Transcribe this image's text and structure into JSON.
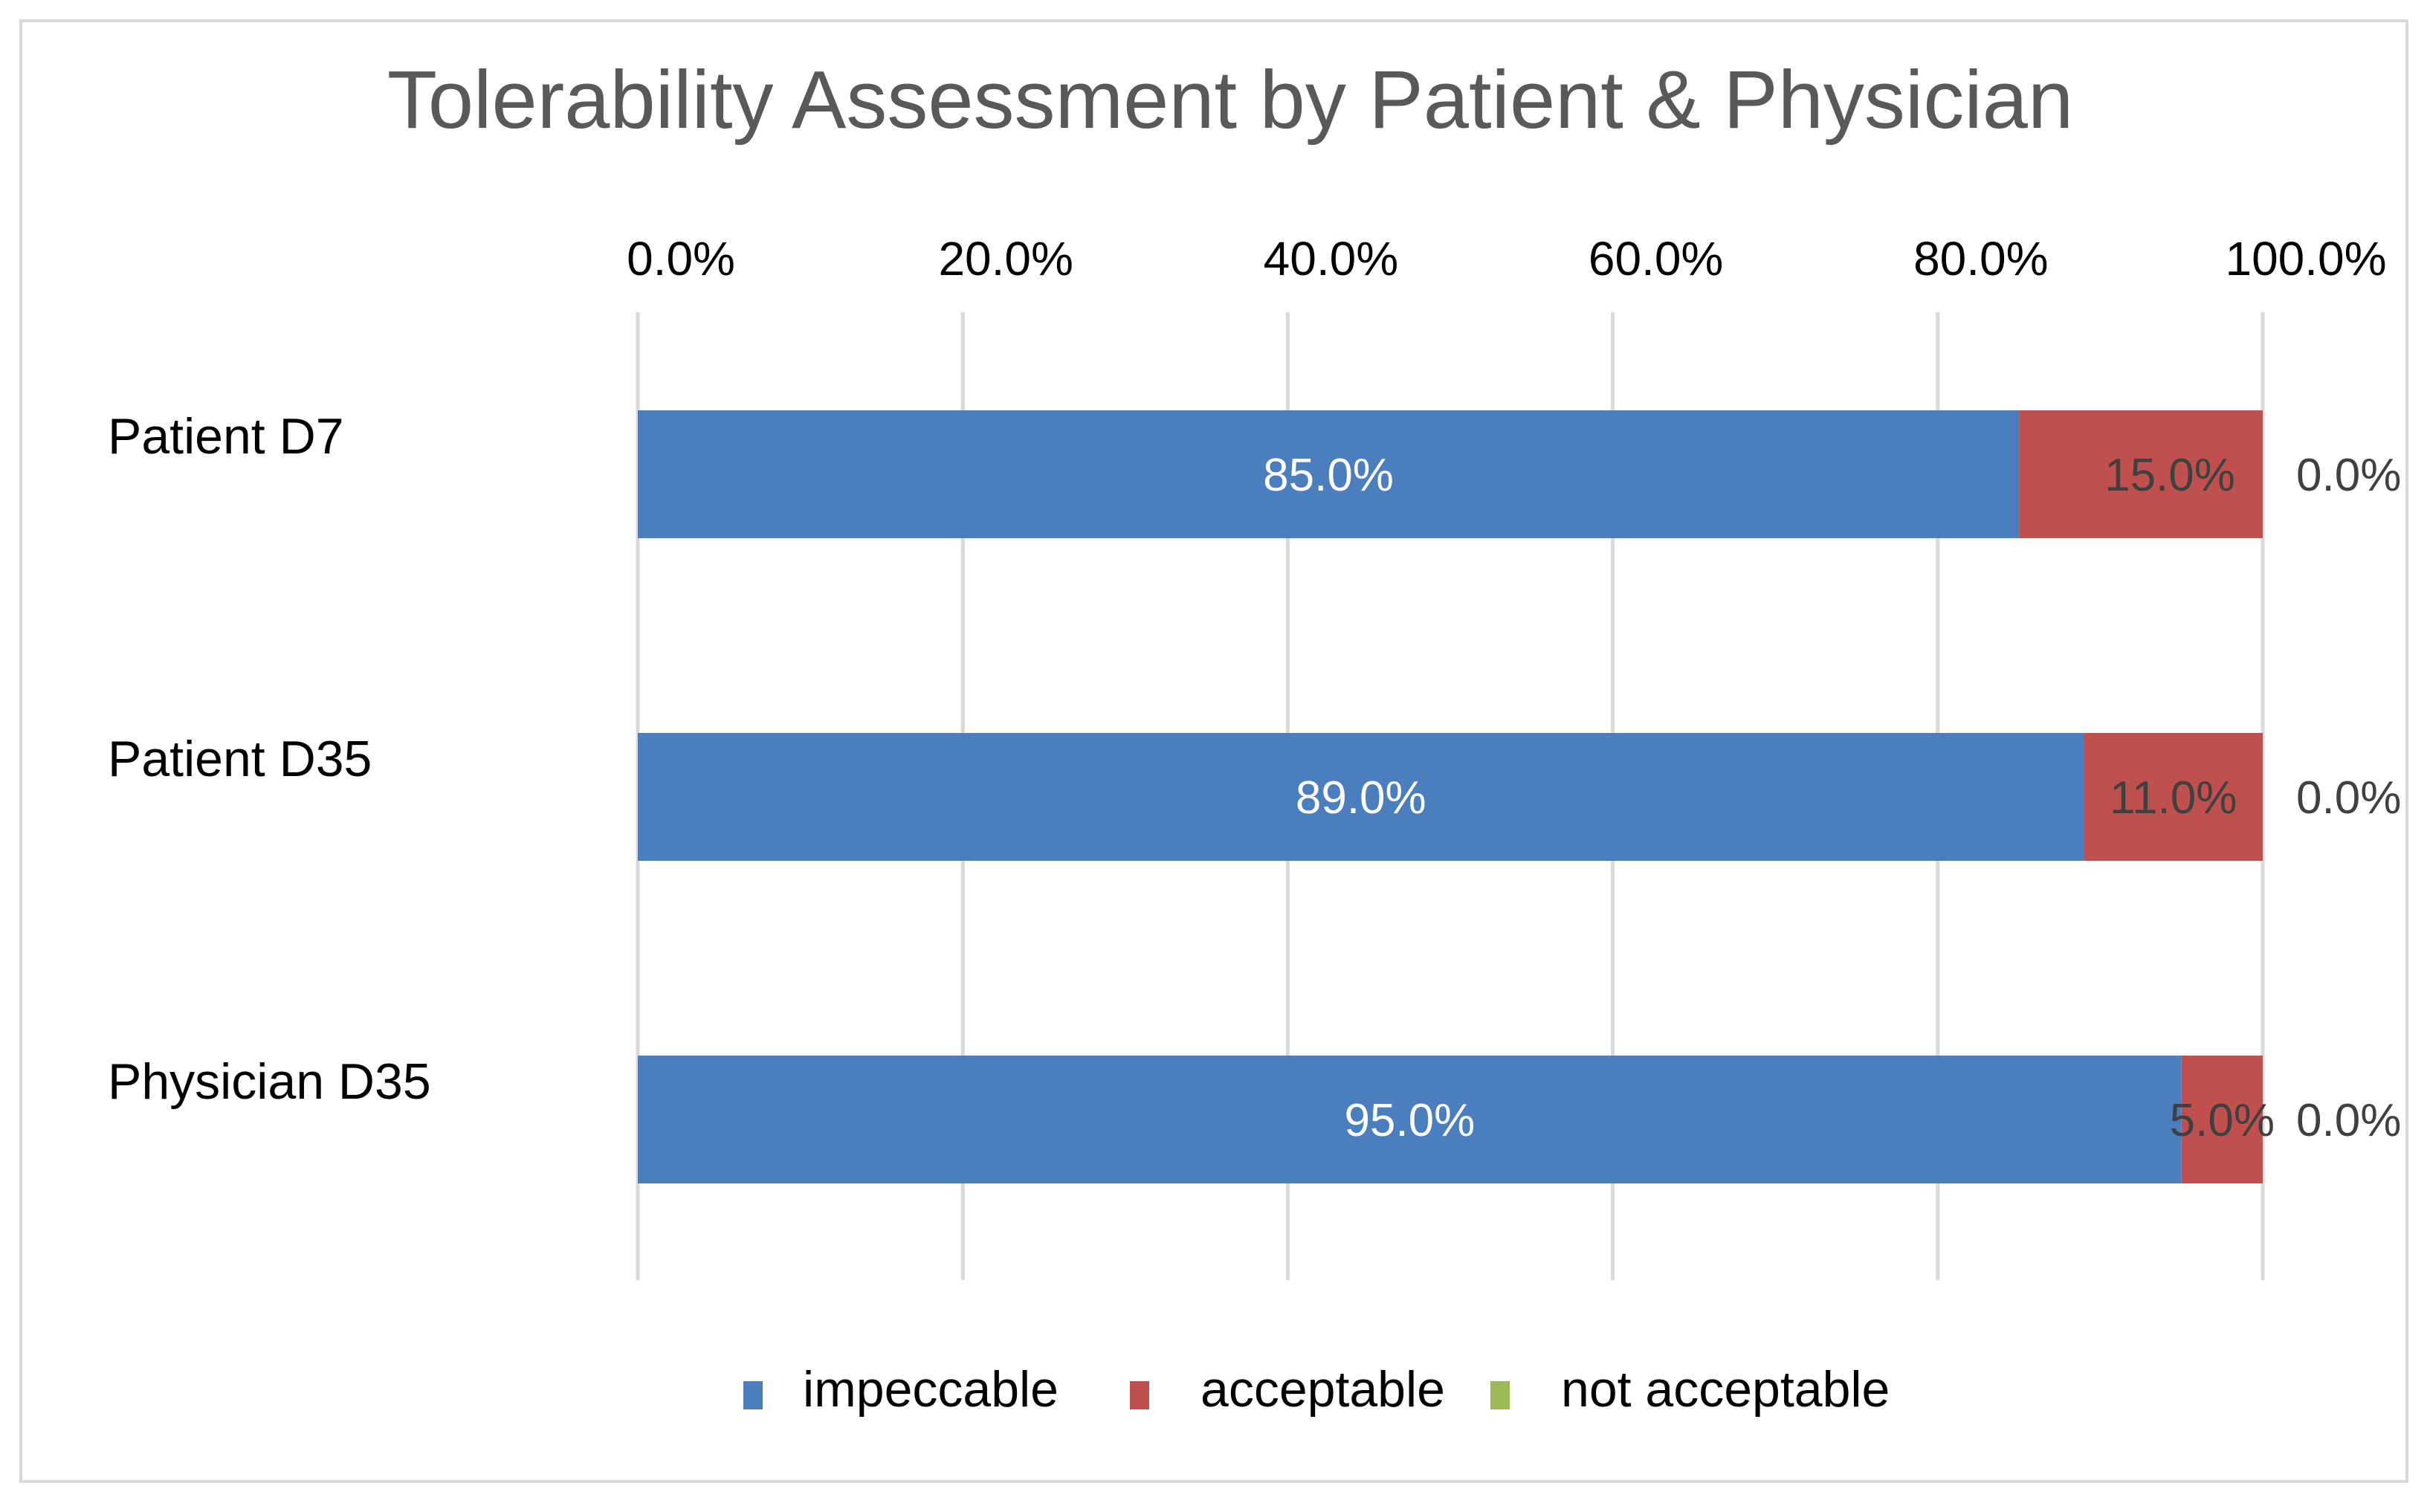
{
  "chart_data": {
    "type": "bar",
    "orientation": "horizontal",
    "stacked": true,
    "title": "Tolerability Assessment by Patient & Physician",
    "categories": [
      "Patient D7",
      "Patient D35",
      "Physician D35"
    ],
    "series": [
      {
        "name": "impeccable",
        "color": "#4a7ebf",
        "values": [
          85.0,
          89.0,
          95.0
        ],
        "labels": [
          "85.0%",
          "89.0%",
          "95.0%"
        ],
        "label_color": "#ffffff"
      },
      {
        "name": "acceptable",
        "color": "#c0504d",
        "values": [
          15.0,
          11.0,
          5.0
        ],
        "labels": [
          "15.0%",
          "11.0%",
          "5.0%"
        ],
        "label_color": "#404040"
      },
      {
        "name": "not acceptable",
        "color": "#9bbb59",
        "values": [
          0.0,
          0.0,
          0.0
        ],
        "labels": [
          "0.0%",
          "0.0%",
          "0.0%"
        ],
        "label_color": "#404040"
      }
    ],
    "xlim": [
      0,
      100
    ],
    "xticks": [
      0,
      20,
      40,
      60,
      80,
      100
    ],
    "xtick_labels": [
      "0.0%",
      "20.0%",
      "40.0%",
      "60.0%",
      "80.0%",
      "100.0%"
    ],
    "xaxis_position": "top",
    "grid": true,
    "legend_position": "bottom"
  }
}
